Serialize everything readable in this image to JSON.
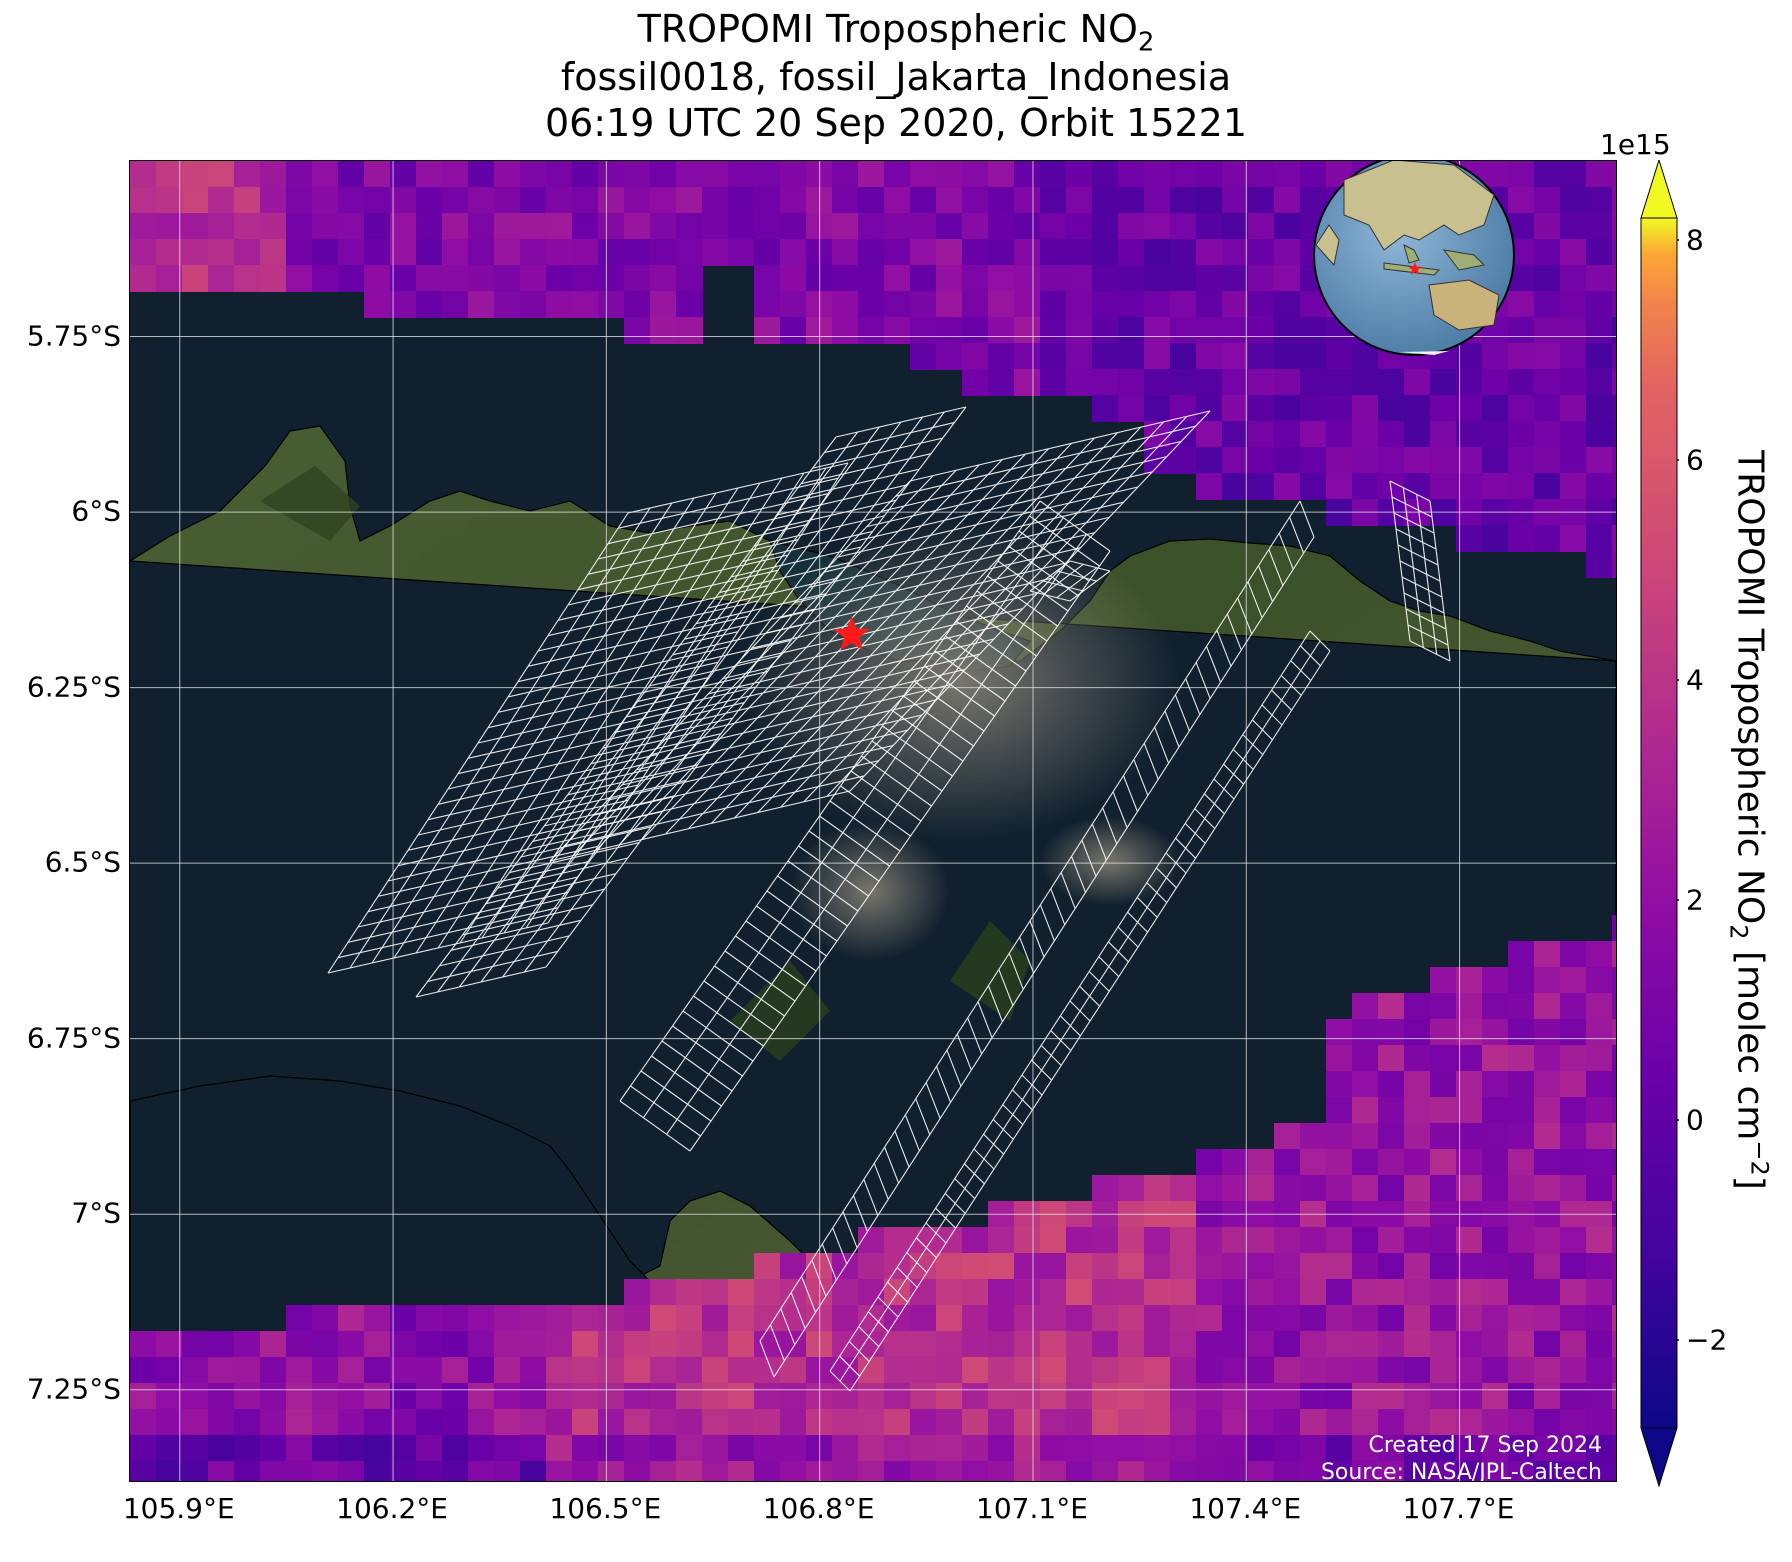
{
  "title": {
    "line1_main": "TROPOMI Tropospheric NO",
    "line1_sub": "2",
    "line2": "fossil0018, fossil_Jakarta_Indonesia",
    "line3": "06:19 UTC 20 Sep 2020, Orbit 15221"
  },
  "map": {
    "lon_range": [
      105.83,
      107.92
    ],
    "lat_range": [
      -7.38,
      -5.5
    ],
    "target_marker": {
      "lon": 106.845,
      "lat": -6.175,
      "color": "#ff1a1a"
    },
    "lat_ticks": [
      {
        "value": -5.75,
        "label": "5.75°S"
      },
      {
        "value": -6.0,
        "label": "6°S"
      },
      {
        "value": -6.25,
        "label": "6.25°S"
      },
      {
        "value": -6.5,
        "label": "6.5°S"
      },
      {
        "value": -6.75,
        "label": "6.75°S"
      },
      {
        "value": -7.0,
        "label": "7°S"
      },
      {
        "value": -7.25,
        "label": "7.25°S"
      }
    ],
    "lon_ticks": [
      {
        "value": 105.9,
        "label": "105.9°E"
      },
      {
        "value": 106.2,
        "label": "106.2°E"
      },
      {
        "value": 106.5,
        "label": "106.5°E"
      },
      {
        "value": 106.8,
        "label": "106.8°E"
      },
      {
        "value": 107.1,
        "label": "107.1°E"
      },
      {
        "value": 107.4,
        "label": "107.4°E"
      },
      {
        "value": 107.7,
        "label": "107.7°E"
      }
    ],
    "colors": {
      "sea": "#10202e",
      "land": "#3f5530",
      "grid": "#e0e0e0",
      "swath": "#ffffff"
    }
  },
  "colorbar": {
    "scale_label": "1e15",
    "label_main": "TROPOMI Tropospheric NO",
    "label_sub": "2",
    "label_units_pre": " [molec cm",
    "label_units_sup": "−2",
    "label_units_post": "]",
    "range": [
      -2.8,
      8.2
    ],
    "colormap": "plasma",
    "extend": "both",
    "ticks": [
      {
        "value": -2,
        "label": "−2"
      },
      {
        "value": 0,
        "label": "0"
      },
      {
        "value": 2,
        "label": "2"
      },
      {
        "value": 4,
        "label": "4"
      },
      {
        "value": 6,
        "label": "6"
      },
      {
        "value": 8,
        "label": "8"
      }
    ]
  },
  "credits": {
    "created": "Created 17 Sep 2024",
    "source": "Source: NASA/JPL-Caltech"
  },
  "inset_globe": {
    "center_lon": 110,
    "center_lat": 0,
    "marker_color": "#ff1a1a"
  }
}
